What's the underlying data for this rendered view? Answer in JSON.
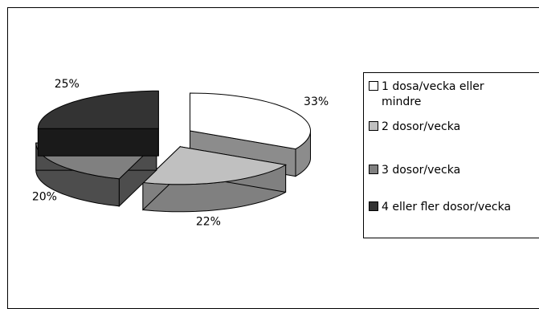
{
  "chart_data": {
    "type": "pie",
    "style": "3d-exploded",
    "series": [
      {
        "name": "1 dosa/vecka eller mindre",
        "label": "33%",
        "value": 33,
        "color": "#ffffff",
        "side": "#8c8c8c"
      },
      {
        "name": "2 dosor/vecka",
        "label": "22%",
        "value": 22,
        "color": "#c0c0c0",
        "side": "#808080"
      },
      {
        "name": "3 dosor/vecka",
        "label": "20%",
        "value": 20,
        "color": "#808080",
        "side": "#4d4d4d"
      },
      {
        "name": "4 eller fler dosor/vecka",
        "label": "25%",
        "value": 25,
        "color": "#333333",
        "side": "#1a1a1a"
      }
    ],
    "legend": {
      "position": "right",
      "items": [
        {
          "line1": "1 dosa/vecka eller",
          "line2": "mindre",
          "color": "#ffffff"
        },
        {
          "line1": "2 dosor/vecka",
          "color": "#c0c0c0"
        },
        {
          "line1": "3 dosor/vecka",
          "color": "#808080"
        },
        {
          "line1": "4 eller fler dosor/vecka",
          "color": "#333333"
        }
      ]
    }
  }
}
